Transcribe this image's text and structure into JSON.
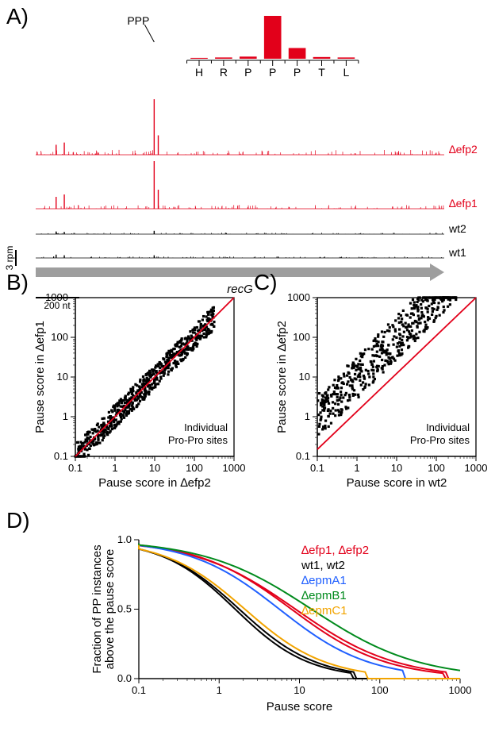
{
  "panelA": {
    "letter": "A)",
    "ppp_label": "PPP",
    "inset": {
      "residues": [
        "H",
        "R",
        "P",
        "P",
        "P",
        "T",
        "L"
      ],
      "bar_heights": [
        0.02,
        0.03,
        0.05,
        1.0,
        0.25,
        0.04,
        0.03
      ],
      "bar_color": "#e2001a"
    },
    "tracks": [
      {
        "name": "∆efp2",
        "label": "∆efp2",
        "color": "#e2001a",
        "label_style": "italic",
        "peaks": [
          [
            0.05,
            0.18
          ],
          [
            0.07,
            0.22
          ],
          [
            0.29,
            1.0
          ],
          [
            0.3,
            0.35
          ]
        ],
        "noise": 0.09
      },
      {
        "name": "∆efp1",
        "label": "∆efp1",
        "color": "#e2001a",
        "label_style": "italic",
        "peaks": [
          [
            0.05,
            0.25
          ],
          [
            0.07,
            0.3
          ],
          [
            0.29,
            1.0
          ],
          [
            0.3,
            0.4
          ]
        ],
        "noise": 0.08
      },
      {
        "name": "wt2",
        "label": "wt2",
        "color": "#000000",
        "label_style": "normal",
        "peaks": [
          [
            0.05,
            0.12
          ],
          [
            0.07,
            0.1
          ],
          [
            0.29,
            0.15
          ]
        ],
        "noise": 0.07
      },
      {
        "name": "wt1",
        "label": "wt1",
        "color": "#000000",
        "label_style": "normal",
        "peaks": [
          [
            0.05,
            0.15
          ],
          [
            0.07,
            0.12
          ],
          [
            0.29,
            0.12
          ]
        ],
        "noise": 0.07
      }
    ],
    "gene_arrow_color": "#9e9e9e",
    "gene_label": "recG",
    "scale_y_label": "3 rpm",
    "scale_x_label": "200 nt"
  },
  "panelB": {
    "letter": "B)",
    "xlabel": "Pause score in ∆efp2",
    "ylabel": "Pause score in ∆efp1",
    "xlim": [
      0.1,
      1000
    ],
    "ylim": [
      0.1,
      1000
    ],
    "ticks": [
      0.1,
      1,
      10,
      100,
      1000
    ],
    "tick_labels": [
      "0.1",
      "1",
      "10",
      "100",
      "1000"
    ],
    "reg_color": "#e2001a",
    "point_color": "#000000",
    "annotation": [
      "Individual",
      "Pro-Pro sites"
    ],
    "n_points": 650,
    "spread": 0.3,
    "seed": 11
  },
  "panelC": {
    "letter": "C)",
    "xlabel": "Pause score in wt2",
    "ylabel": "Pause score in ∆efp2",
    "xlim": [
      0.1,
      1000
    ],
    "ylim": [
      0.1,
      1000
    ],
    "ticks": [
      0.1,
      1,
      10,
      100,
      1000
    ],
    "tick_labels": [
      "0.1",
      "1",
      "10",
      "100",
      "1000"
    ],
    "reg_color": "#e2001a",
    "point_color": "#000000",
    "annotation": [
      "Individual",
      "Pro-Pro sites"
    ],
    "n_points": 520,
    "spread": 0.55,
    "slope_bias": 0.55,
    "seed": 23
  },
  "panelD": {
    "letter": "D)",
    "xlabel": "Pause score",
    "ylabel": [
      "Fraction of PP instances",
      "above the pause score"
    ],
    "xlim": [
      0.05,
      1000
    ],
    "ylim": [
      0,
      1
    ],
    "xticks": [
      0.1,
      1,
      10,
      100,
      1000
    ],
    "xtick_labels": [
      "0.1",
      "1",
      "10",
      "100",
      "1000"
    ],
    "yticks": [
      0.0,
      0.5,
      1.0
    ],
    "ytick_labels": [
      "0.0",
      "0.5",
      "1.0"
    ],
    "legend": [
      {
        "label": "∆efp1, ∆efp2",
        "color": "#e2001a"
      },
      {
        "label": "wt1, wt2",
        "color": "#000000"
      },
      {
        "label": "∆epmA1",
        "color": "#1f5fff"
      },
      {
        "label": "∆epmB1",
        "color": "#008a1c"
      },
      {
        "label": "∆epmC1",
        "color": "#f2a400"
      }
    ],
    "curves": [
      {
        "color": "#e2001a",
        "mid_log": 0.95,
        "slope": 1.6,
        "max_log": 2.85
      },
      {
        "color": "#e2001a",
        "mid_log": 0.9,
        "slope": 1.7,
        "max_log": 2.8
      },
      {
        "color": "#000000",
        "mid_log": 0.25,
        "slope": 2.1,
        "max_log": 1.7
      },
      {
        "color": "#000000",
        "mid_log": 0.2,
        "slope": 2.2,
        "max_log": 1.65
      },
      {
        "color": "#1f5fff",
        "mid_log": 0.75,
        "slope": 1.8,
        "max_log": 2.3
      },
      {
        "color": "#008a1c",
        "mid_log": 1.15,
        "slope": 1.5,
        "max_log": 3.0
      },
      {
        "color": "#f2a400",
        "mid_log": 0.32,
        "slope": 2.0,
        "max_log": 1.85
      }
    ]
  },
  "colors": {
    "red": "#e2001a",
    "black": "#000000",
    "gray": "#9e9e9e",
    "blue": "#1f5fff",
    "green": "#008a1c",
    "orange": "#f2a400",
    "background": "#ffffff"
  }
}
